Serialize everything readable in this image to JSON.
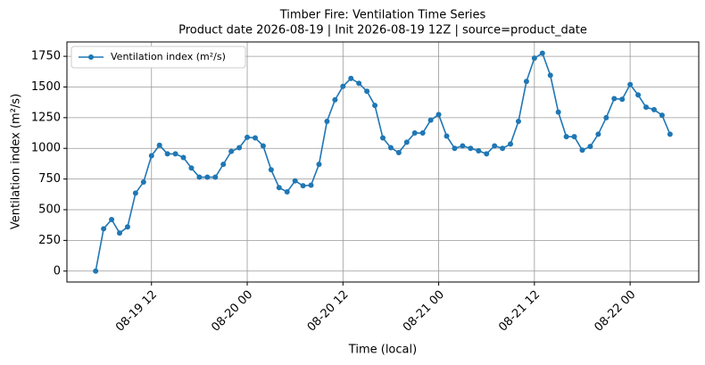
{
  "chart_data": {
    "type": "line",
    "title": "Timber Fire: Ventilation Time Series",
    "subtitle": "Product date 2026-08-19 | Init 2026-08-19 12Z | source=product_date",
    "x_label": "Time (local)",
    "y_label": "Ventilation index (m²/s)",
    "x": [
      "08-19 05",
      "08-19 06",
      "08-19 07",
      "08-19 08",
      "08-19 09",
      "08-19 10",
      "08-19 11",
      "08-19 12",
      "08-19 13",
      "08-19 14",
      "08-19 15",
      "08-19 16",
      "08-19 17",
      "08-19 18",
      "08-19 19",
      "08-19 20",
      "08-19 21",
      "08-19 22",
      "08-19 23",
      "08-20 00",
      "08-20 01",
      "08-20 02",
      "08-20 03",
      "08-20 04",
      "08-20 05",
      "08-20 06",
      "08-20 07",
      "08-20 08",
      "08-20 09",
      "08-20 10",
      "08-20 11",
      "08-20 12",
      "08-20 13",
      "08-20 14",
      "08-20 15",
      "08-20 16",
      "08-20 17",
      "08-20 18",
      "08-20 19",
      "08-20 20",
      "08-20 21",
      "08-20 22",
      "08-20 23",
      "08-21 00",
      "08-21 01",
      "08-21 02",
      "08-21 03",
      "08-21 04",
      "08-21 05",
      "08-21 06",
      "08-21 07",
      "08-21 08",
      "08-21 09",
      "08-21 10",
      "08-21 11",
      "08-21 12",
      "08-21 13",
      "08-21 14",
      "08-21 15",
      "08-21 16",
      "08-21 17",
      "08-21 18",
      "08-21 19",
      "08-21 20",
      "08-21 21",
      "08-21 22",
      "08-21 23",
      "08-22 00",
      "08-22 01",
      "08-22 02",
      "08-22 03",
      "08-22 04",
      "08-22 05"
    ],
    "series": [
      {
        "name": "Ventilation index (m²/s)",
        "color": "#1f77b4",
        "values": [
          0,
          345,
          420,
          310,
          360,
          635,
          725,
          940,
          1025,
          955,
          955,
          925,
          840,
          765,
          765,
          765,
          870,
          975,
          1005,
          1090,
          1085,
          1020,
          825,
          680,
          645,
          735,
          695,
          700,
          870,
          1220,
          1395,
          1505,
          1570,
          1530,
          1465,
          1350,
          1085,
          1005,
          965,
          1050,
          1125,
          1125,
          1230,
          1275,
          1100,
          1000,
          1020,
          1000,
          980,
          955,
          1020,
          1000,
          1035,
          1220,
          1545,
          1735,
          1775,
          1595,
          1295,
          1095,
          1095,
          985,
          1015,
          1115,
          1250,
          1405,
          1400,
          1520,
          1435,
          1335,
          1315,
          1270,
          1115
        ]
      }
    ],
    "xlim": [
      "08-19 01:24",
      "08-22 08:36"
    ],
    "xticks": [
      "08-19 12",
      "08-20 00",
      "08-20 12",
      "08-21 00",
      "08-21 12",
      "08-22 00"
    ],
    "ylim": [
      -89,
      1867
    ],
    "yticks": [
      0,
      250,
      500,
      750,
      1000,
      1250,
      1500,
      1750
    ],
    "grid": true,
    "legend": "upper left"
  }
}
